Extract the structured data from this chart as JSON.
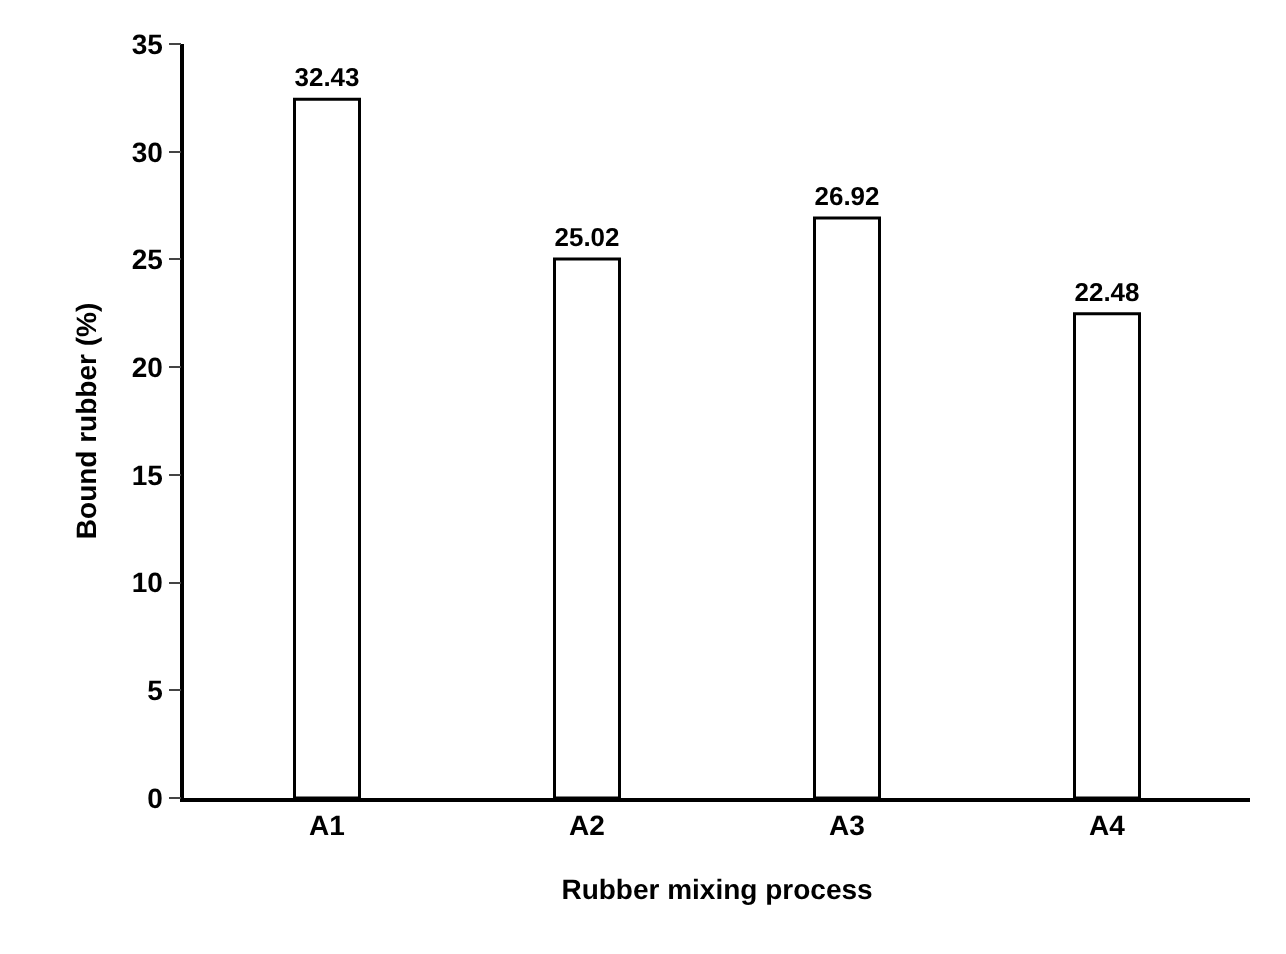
{
  "chart_data": {
    "type": "bar",
    "xlabel": "Rubber mixing process",
    "ylabel": "Bound rubber (%)",
    "categories": [
      "A1",
      "A2",
      "A3",
      "A4"
    ],
    "values": [
      32.43,
      25.02,
      26.92,
      22.48
    ],
    "color": "#ffffff",
    "data_labels": true,
    "ylim": [
      0,
      35
    ],
    "yticks": [
      0,
      5,
      10,
      15,
      20,
      25,
      30,
      35
    ]
  }
}
